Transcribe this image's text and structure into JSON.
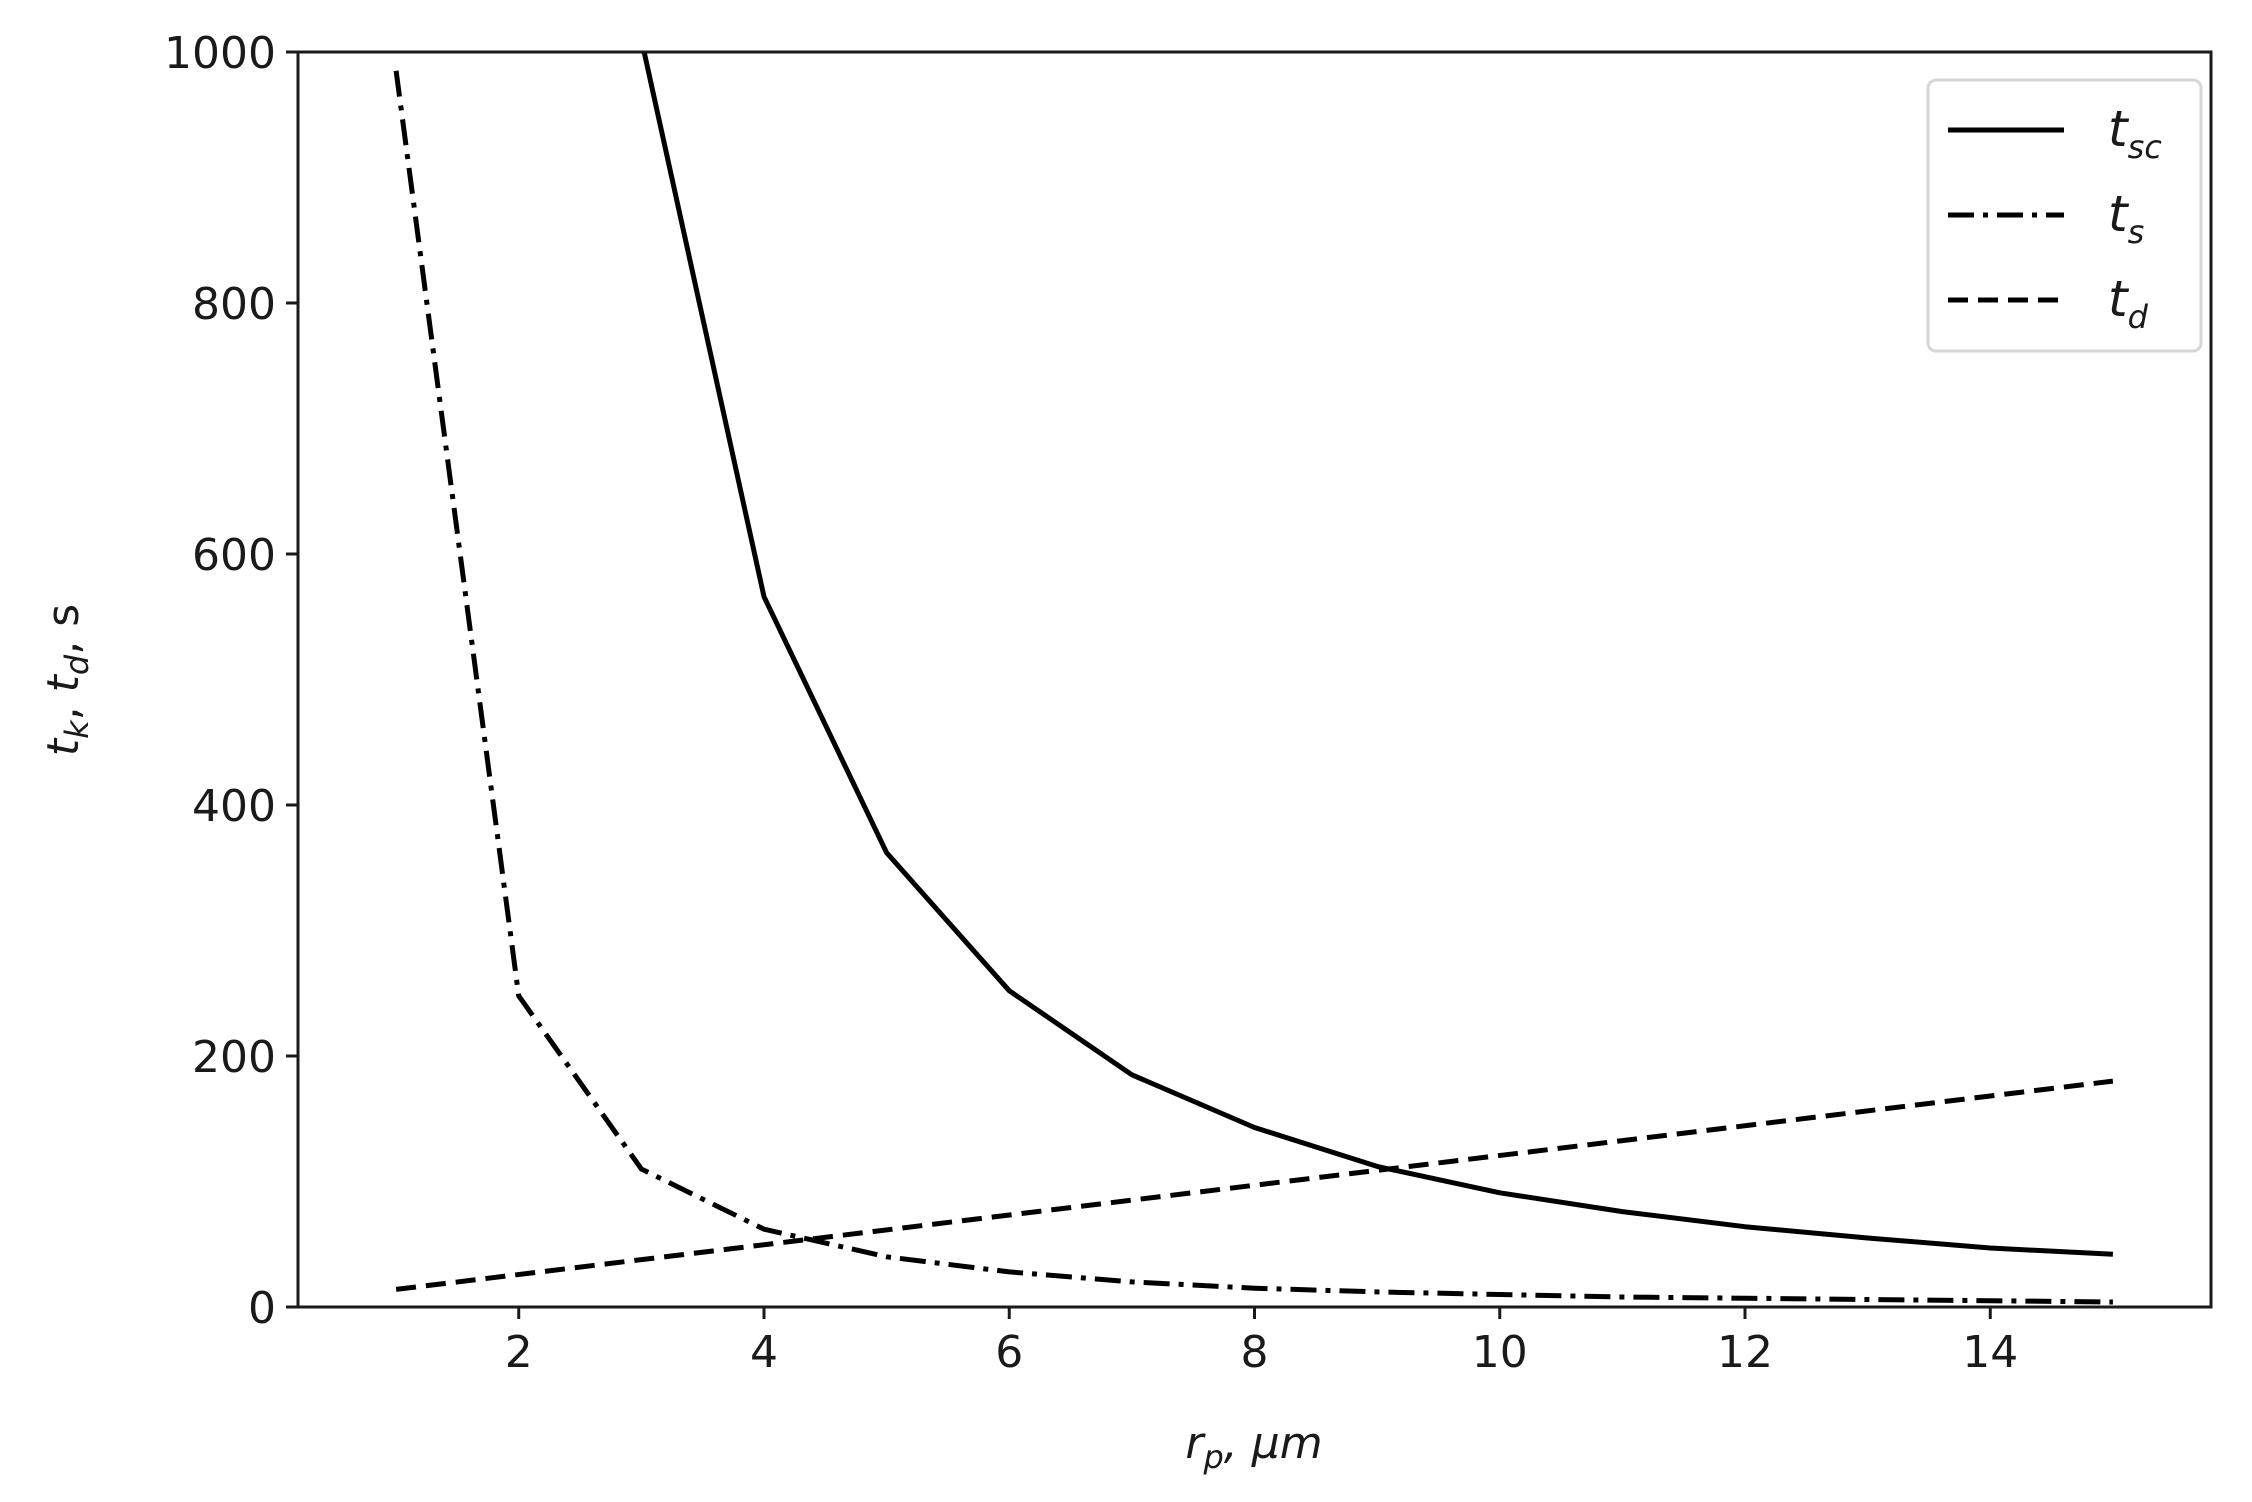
{
  "chart_data": {
    "type": "line",
    "x_axis": {
      "label": {
        "main": "r",
        "sub": "p",
        "rest": ", μm"
      },
      "range": [
        0.2,
        15.8
      ],
      "ticks": [
        2,
        4,
        6,
        8,
        10,
        12,
        14
      ],
      "tick_labels": [
        "2",
        "4",
        "6",
        "8",
        "10",
        "12",
        "14"
      ]
    },
    "y_axis": {
      "label": {
        "t1": "t",
        "s1": "k",
        "sep1": ", ",
        "t2": "t",
        "s2": "d",
        "rest": ", s"
      },
      "range": [
        0,
        1000
      ],
      "ticks": [
        0,
        200,
        400,
        600,
        800,
        1000
      ],
      "tick_labels": [
        "0",
        "200",
        "400",
        "600",
        "800",
        "1000"
      ]
    },
    "grid": false,
    "legend_position": "top-right",
    "series": [
      {
        "name": "t_sc",
        "legend": {
          "main": "t",
          "sub": "sc"
        },
        "style": "solid",
        "points": [
          [
            3,
            1010
          ],
          [
            4,
            566
          ],
          [
            5,
            362
          ],
          [
            6,
            252
          ],
          [
            7,
            185
          ],
          [
            8,
            143
          ],
          [
            9,
            112
          ],
          [
            10,
            91
          ],
          [
            11,
            76
          ],
          [
            12,
            64
          ],
          [
            13,
            55
          ],
          [
            14,
            47
          ],
          [
            15,
            42
          ]
        ]
      },
      {
        "name": "t_s",
        "legend": {
          "main": "t",
          "sub": "s"
        },
        "style": "dashdot",
        "points": [
          [
            1,
            985
          ],
          [
            2,
            248
          ],
          [
            3,
            110
          ],
          [
            4,
            62
          ],
          [
            5,
            40
          ],
          [
            6,
            28
          ],
          [
            7,
            20
          ],
          [
            8,
            15
          ],
          [
            9,
            12
          ],
          [
            10,
            10
          ],
          [
            11,
            8
          ],
          [
            12,
            7
          ],
          [
            13,
            6
          ],
          [
            14,
            5
          ],
          [
            15,
            4
          ]
        ]
      },
      {
        "name": "t_d",
        "legend": {
          "main": "t",
          "sub": "d"
        },
        "style": "dashed",
        "points": [
          [
            1,
            14
          ],
          [
            15,
            180
          ]
        ]
      }
    ],
    "line_color": "#000000"
  }
}
